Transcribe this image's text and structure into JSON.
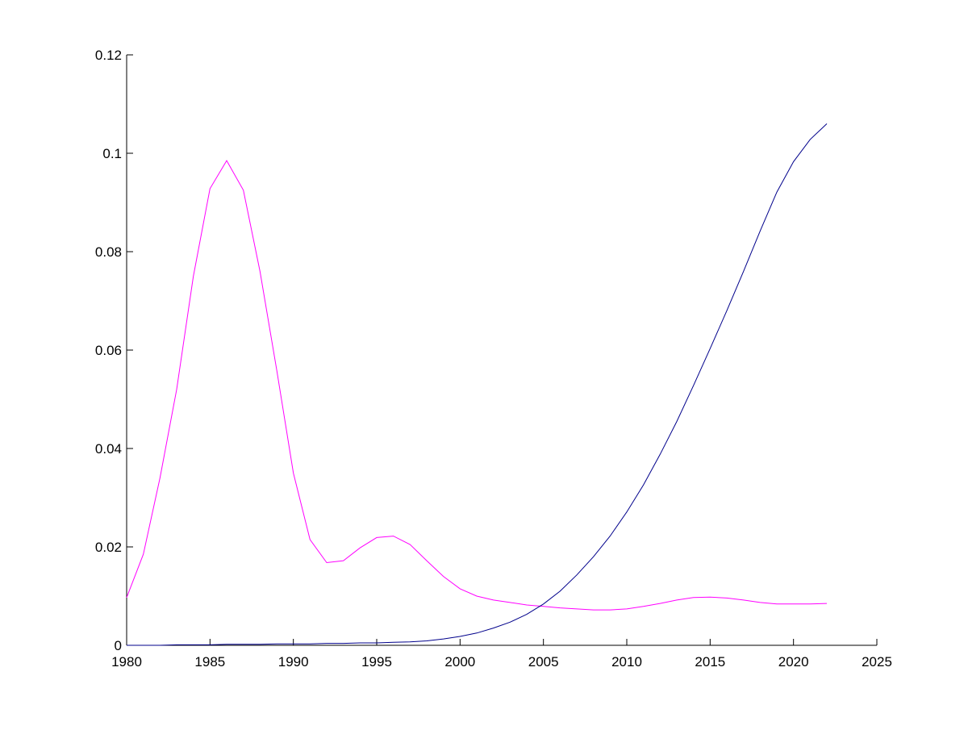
{
  "chart_data": {
    "type": "line",
    "title": "",
    "xlabel": "",
    "ylabel": "",
    "xlim": [
      1980,
      2025
    ],
    "ylim": [
      0,
      0.12
    ],
    "xticks": [
      1980,
      1985,
      1990,
      1995,
      2000,
      2005,
      2010,
      2015,
      2020,
      2025
    ],
    "xtick_labels": [
      "1980",
      "1985",
      "1990",
      "1995",
      "2000",
      "2005",
      "2010",
      "2015",
      "2020",
      "2025"
    ],
    "yticks": [
      0,
      0.02,
      0.04,
      0.06,
      0.08,
      0.1,
      0.12
    ],
    "ytick_labels": [
      "0",
      "0.02",
      "0.04",
      "0.06",
      "0.08",
      "0.1",
      "0.12"
    ],
    "grid": false,
    "legend": "none",
    "x": [
      1980,
      1981,
      1982,
      1983,
      1984,
      1985,
      1986,
      1987,
      1988,
      1989,
      1990,
      1991,
      1992,
      1993,
      1994,
      1995,
      1996,
      1997,
      1998,
      1999,
      2000,
      2001,
      2002,
      2003,
      2004,
      2005,
      2006,
      2007,
      2008,
      2009,
      2010,
      2011,
      2012,
      2013,
      2014,
      2015,
      2016,
      2017,
      2018,
      2019,
      2020,
      2021,
      2022
    ],
    "series": [
      {
        "color": "#ff00ff",
        "values": [
          0.0097,
          0.0185,
          0.034,
          0.052,
          0.075,
          0.0928,
          0.0985,
          0.0925,
          0.076,
          0.056,
          0.035,
          0.0215,
          0.0168,
          0.0172,
          0.0198,
          0.0219,
          0.0222,
          0.0205,
          0.0172,
          0.014,
          0.0115,
          0.01,
          0.0092,
          0.0087,
          0.0082,
          0.0079,
          0.0076,
          0.0074,
          0.0072,
          0.0072,
          0.0074,
          0.0079,
          0.0085,
          0.0092,
          0.0097,
          0.0098,
          0.0096,
          0.0092,
          0.0087,
          0.0084,
          0.0084,
          0.0084,
          0.0085
        ]
      },
      {
        "color": "#00008b",
        "values": [
          0.0,
          0.0,
          0.0,
          0.0001,
          0.0001,
          0.0001,
          0.0002,
          0.0002,
          0.0002,
          0.0003,
          0.0003,
          0.0003,
          0.0004,
          0.0004,
          0.0005,
          0.0005,
          0.0006,
          0.0007,
          0.0009,
          0.0013,
          0.0018,
          0.0025,
          0.0035,
          0.0047,
          0.0063,
          0.0084,
          0.011,
          0.0143,
          0.018,
          0.0222,
          0.0271,
          0.0326,
          0.0388,
          0.0455,
          0.0528,
          0.0603,
          0.068,
          0.076,
          0.0842,
          0.0921,
          0.0983,
          0.1028,
          0.106
        ]
      }
    ]
  }
}
